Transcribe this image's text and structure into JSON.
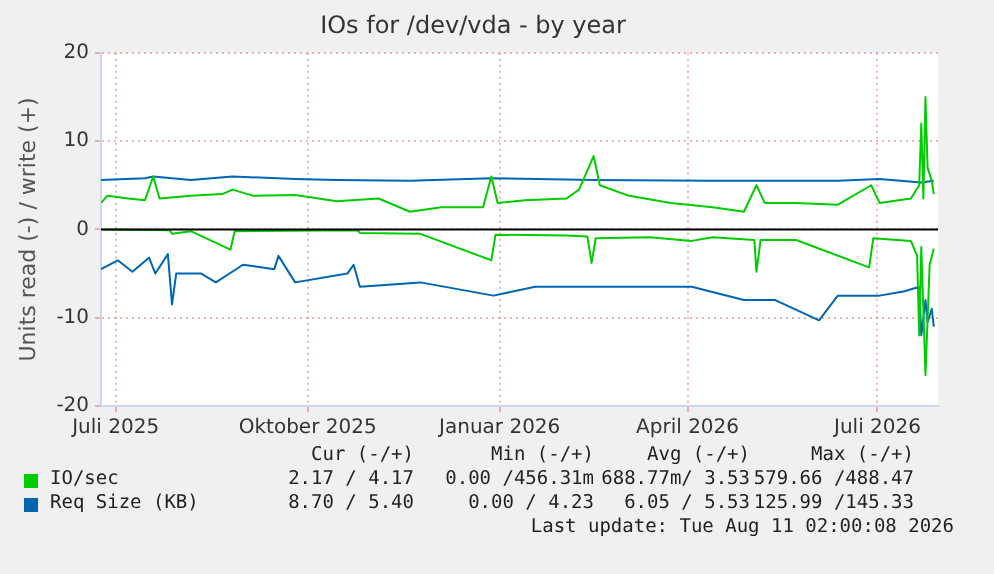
{
  "chart_data": {
    "type": "line",
    "title": "IOs for /dev/vda - by year",
    "ylabel": "Units read (-) / write (+)",
    "xlim": [
      "2025-06-24",
      "2026-07-30"
    ],
    "xticks": [
      {
        "value": "2025-07-01",
        "label": "Juli 2025"
      },
      {
        "value": "2025-10-01",
        "label": "Oktober 2025"
      },
      {
        "value": "2026-01-01",
        "label": "Januar 2026"
      },
      {
        "value": "2026-04-01",
        "label": "April 2026"
      },
      {
        "value": "2026-07-01",
        "label": "Juli 2026"
      }
    ],
    "ylim": [
      -20,
      20
    ],
    "yticks": [
      -20,
      -10,
      0,
      10,
      20
    ],
    "grid": true,
    "legend": "bottom",
    "ref_lines": [
      {
        "axis": "y",
        "value": 0,
        "color": "#000000"
      }
    ],
    "series": [
      {
        "name": "IO/sec",
        "color": "#00cc00",
        "x": [
          "2025-06-24",
          "2025-06-27",
          "2025-07-07",
          "2025-07-15",
          "2025-07-19",
          "2025-07-22",
          "2025-08-06",
          "2025-08-21",
          "2025-08-26",
          "2025-09-05",
          "2025-09-25",
          "2025-10-15",
          "2025-11-04",
          "2025-11-19",
          "2025-12-04",
          "2025-12-24",
          "2025-12-28",
          "2025-12-31",
          "2026-01-13",
          "2026-02-02",
          "2026-02-08",
          "2026-02-15",
          "2026-02-18",
          "2026-03-04",
          "2026-03-24",
          "2026-04-13",
          "2026-04-28",
          "2026-05-04",
          "2026-05-08",
          "2026-05-23",
          "2026-06-12",
          "2026-06-28",
          "2026-07-02",
          "2026-07-17",
          "2026-07-21",
          "2026-07-22",
          "2026-07-23",
          "2026-07-24",
          "2026-07-25",
          "2026-07-27",
          "2026-07-28"
        ],
        "values": [
          3.0,
          3.8,
          3.5,
          3.3,
          6.0,
          3.5,
          3.8,
          4.0,
          4.5,
          3.8,
          3.9,
          3.2,
          3.5,
          2.0,
          2.5,
          2.5,
          6.0,
          3.0,
          3.3,
          3.5,
          4.5,
          8.3,
          5.0,
          3.8,
          3.0,
          2.5,
          2.0,
          5.0,
          3.0,
          3.0,
          2.8,
          5.0,
          3.0,
          3.5,
          5.0,
          12,
          3.5,
          15,
          7,
          5.5,
          4.0
        ]
      },
      {
        "color": "#00cc00",
        "x": [
          "2025-06-24",
          "2025-07-27",
          "2025-07-28",
          "2025-08-06",
          "2025-08-25",
          "2025-08-27",
          "2025-10-25",
          "2025-10-26",
          "2025-11-24",
          "2025-12-28",
          "2025-12-30",
          "2026-02-02",
          "2026-02-12",
          "2026-02-14",
          "2026-02-16",
          "2026-03-14",
          "2026-04-03",
          "2026-04-13",
          "2026-05-03",
          "2026-05-04",
          "2026-05-06",
          "2026-05-23",
          "2026-06-27",
          "2026-06-29",
          "2026-07-17",
          "2026-07-20",
          "2026-07-21",
          "2026-07-22",
          "2026-07-24",
          "2026-07-26",
          "2026-07-28"
        ],
        "values": [
          0,
          -0.1,
          -0.5,
          -0.2,
          -2.3,
          -0.2,
          -0.1,
          -0.4,
          -0.5,
          -3.5,
          -0.6,
          -0.7,
          -0.8,
          -3.8,
          -1.0,
          -0.9,
          -1.3,
          -0.9,
          -1.2,
          -4.8,
          -1.2,
          -1.2,
          -4.3,
          -1.0,
          -1.3,
          -3.0,
          -12,
          -2,
          -16.5,
          -4,
          -2.2
        ]
      },
      {
        "name": "Req Size (KB)",
        "color": "#0066b3",
        "x": [
          "2025-06-24",
          "2025-07-15",
          "2025-07-19",
          "2025-08-06",
          "2025-08-26",
          "2025-09-25",
          "2025-10-15",
          "2025-11-19",
          "2025-12-28",
          "2026-02-15",
          "2026-04-13",
          "2026-06-12",
          "2026-07-02",
          "2026-07-22",
          "2026-07-28"
        ],
        "values": [
          5.6,
          5.8,
          6.0,
          5.6,
          6.0,
          5.7,
          5.6,
          5.5,
          5.8,
          5.6,
          5.5,
          5.5,
          5.7,
          5.3,
          5.5
        ]
      },
      {
        "color": "#0066b3",
        "x": [
          "2025-06-24",
          "2025-07-02",
          "2025-07-09",
          "2025-07-17",
          "2025-07-20",
          "2025-07-26",
          "2025-07-28",
          "2025-07-30",
          "2025-08-11",
          "2025-08-18",
          "2025-08-31",
          "2025-09-15",
          "2025-09-17",
          "2025-09-25",
          "2025-10-20",
          "2025-10-23",
          "2025-10-26",
          "2025-11-24",
          "2025-12-29",
          "2026-01-18",
          "2026-02-12",
          "2026-03-04",
          "2026-04-03",
          "2026-04-28",
          "2026-05-13",
          "2026-06-03",
          "2026-06-12",
          "2026-07-02",
          "2026-07-14",
          "2026-07-21",
          "2026-07-22",
          "2026-07-24",
          "2026-07-25",
          "2026-07-27",
          "2026-07-28"
        ],
        "values": [
          -4.5,
          -3.5,
          -4.8,
          -3.2,
          -5.0,
          -2.8,
          -8.5,
          -5.0,
          -5.0,
          -6.0,
          -4.0,
          -4.5,
          -3.0,
          -6.0,
          -5.0,
          -4.0,
          -6.5,
          -6.0,
          -7.5,
          -6.5,
          -6.5,
          -6.5,
          -6.5,
          -8.0,
          -8.0,
          -10.3,
          -7.5,
          -7.5,
          -7.0,
          -6.5,
          -12,
          -8,
          -10.5,
          -9,
          -11
        ]
      }
    ],
    "annotations": [
      "Cur (-/+)",
      "Min (-/+)",
      "Avg (-/+)",
      "Max (-/+)",
      "2.17 / 4.17",
      "0.00 /456.31m",
      "688.77m/ 3.53",
      "579.66 /488.47",
      "8.70 / 5.40",
      "0.00 / 4.23",
      "6.05 / 5.53",
      "125.99 /145.33",
      "Last update: Tue Aug 11 02:00:08 2026"
    ]
  }
}
